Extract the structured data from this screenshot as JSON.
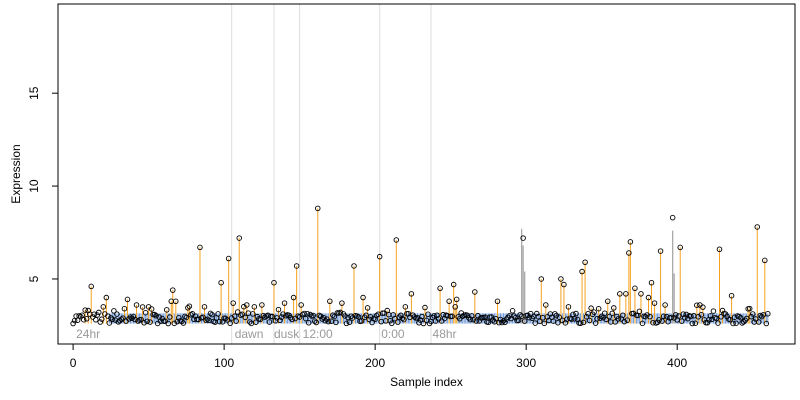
{
  "chart_data": {
    "type": "scatter",
    "title": "",
    "xlabel": "Sample index",
    "ylabel": "Expression",
    "xlim": [
      -10,
      478
    ],
    "ylim": [
      1.5,
      19.8
    ],
    "x_ticks": [
      0,
      100,
      200,
      300,
      400
    ],
    "y_ticks": [
      5,
      10,
      15
    ],
    "baseline": 2.6,
    "grid": false,
    "vlines": [
      105,
      133,
      150,
      203,
      237
    ],
    "annotations": [
      {
        "x": 2,
        "label": "24hr"
      },
      {
        "x": 107,
        "label": "dawn"
      },
      {
        "x": 133,
        "label": "dusk"
      },
      {
        "x": 152,
        "label": "12:00"
      },
      {
        "x": 204,
        "label": "0:00"
      },
      {
        "x": 238,
        "label": "48hr"
      }
    ],
    "colors": {
      "low": "#6f9ad8",
      "mid": "#f6a21e",
      "high": "#a9a9a9",
      "point": "#000000",
      "vline": "#dedede",
      "annotation": "#9a9a9a"
    },
    "highlights": [
      {
        "x": 12,
        "y": 4.6
      },
      {
        "x": 17,
        "y": 3.2
      },
      {
        "x": 20,
        "y": 3.5
      },
      {
        "x": 22,
        "y": 4.0
      },
      {
        "x": 34,
        "y": 3.4
      },
      {
        "x": 36,
        "y": 3.9
      },
      {
        "x": 42,
        "y": 3.6
      },
      {
        "x": 50,
        "y": 3.5
      },
      {
        "x": 65,
        "y": 3.8
      },
      {
        "x": 66,
        "y": 4.4
      },
      {
        "x": 68,
        "y": 3.8
      },
      {
        "x": 84,
        "y": 6.7
      },
      {
        "x": 87,
        "y": 3.5
      },
      {
        "x": 98,
        "y": 4.8
      },
      {
        "x": 103,
        "y": 6.1
      },
      {
        "x": 106,
        "y": 3.7
      },
      {
        "x": 110,
        "y": 7.2
      },
      {
        "x": 115,
        "y": 3.6
      },
      {
        "x": 120,
        "y": 3.5
      },
      {
        "x": 125,
        "y": 3.6
      },
      {
        "x": 128,
        "y": 3.0
      },
      {
        "x": 133,
        "y": 4.8
      },
      {
        "x": 140,
        "y": 3.7
      },
      {
        "x": 146,
        "y": 4.0
      },
      {
        "x": 148,
        "y": 5.7
      },
      {
        "x": 151,
        "y": 3.6
      },
      {
        "x": 162,
        "y": 8.8
      },
      {
        "x": 170,
        "y": 3.8
      },
      {
        "x": 178,
        "y": 3.7
      },
      {
        "x": 186,
        "y": 5.7
      },
      {
        "x": 192,
        "y": 4.0
      },
      {
        "x": 203,
        "y": 6.2
      },
      {
        "x": 208,
        "y": 3.3
      },
      {
        "x": 214,
        "y": 7.1
      },
      {
        "x": 220,
        "y": 3.5
      },
      {
        "x": 224,
        "y": 4.2
      },
      {
        "x": 243,
        "y": 4.5
      },
      {
        "x": 249,
        "y": 3.8
      },
      {
        "x": 252,
        "y": 4.7
      },
      {
        "x": 254,
        "y": 3.9
      },
      {
        "x": 266,
        "y": 4.3
      },
      {
        "x": 281,
        "y": 3.8
      },
      {
        "x": 298,
        "y": 7.2
      },
      {
        "x": 310,
        "y": 5.0
      },
      {
        "x": 313,
        "y": 3.6
      },
      {
        "x": 323,
        "y": 5.0
      },
      {
        "x": 325,
        "y": 4.7
      },
      {
        "x": 328,
        "y": 3.5
      },
      {
        "x": 337,
        "y": 5.4
      },
      {
        "x": 339,
        "y": 5.9
      },
      {
        "x": 348,
        "y": 3.4
      },
      {
        "x": 354,
        "y": 3.8
      },
      {
        "x": 362,
        "y": 4.2
      },
      {
        "x": 366,
        "y": 4.2
      },
      {
        "x": 368,
        "y": 6.4
      },
      {
        "x": 369,
        "y": 7.0
      },
      {
        "x": 372,
        "y": 4.5
      },
      {
        "x": 376,
        "y": 4.2
      },
      {
        "x": 381,
        "y": 4.0
      },
      {
        "x": 383,
        "y": 4.8
      },
      {
        "x": 385,
        "y": 3.7
      },
      {
        "x": 389,
        "y": 6.5
      },
      {
        "x": 392,
        "y": 3.6
      },
      {
        "x": 397,
        "y": 8.3
      },
      {
        "x": 402,
        "y": 6.7
      },
      {
        "x": 415,
        "y": 3.6
      },
      {
        "x": 428,
        "y": 6.6
      },
      {
        "x": 430,
        "y": 3.3
      },
      {
        "x": 436,
        "y": 4.1
      },
      {
        "x": 453,
        "y": 7.8
      },
      {
        "x": 458,
        "y": 6.0
      }
    ],
    "grey_bars": [
      {
        "x": 297,
        "y": 7.7
      },
      {
        "x": 298,
        "y": 6.8
      },
      {
        "x": 299,
        "y": 5.4
      },
      {
        "x": 397,
        "y": 7.6
      },
      {
        "x": 398,
        "y": 5.3
      }
    ]
  }
}
